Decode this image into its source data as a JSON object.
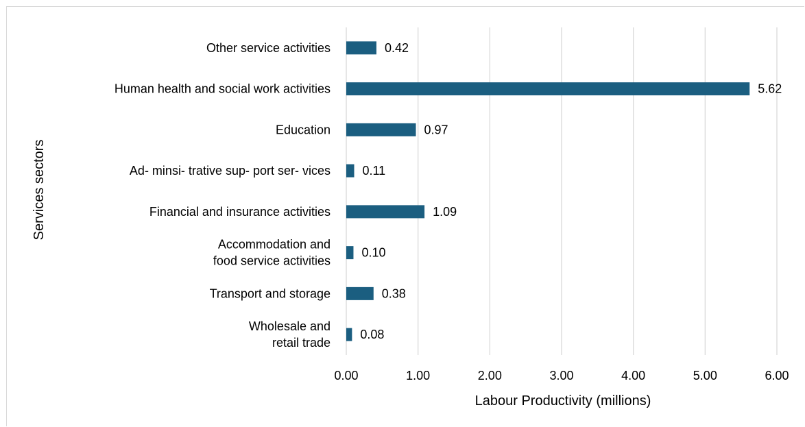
{
  "chart_data": {
    "type": "bar",
    "orientation": "horizontal",
    "categories": [
      [
        "Wholesale and",
        "retail trade"
      ],
      [
        "Transport and storage"
      ],
      [
        "Accommodation and",
        "food service activities"
      ],
      [
        "Financial and insurance activities"
      ],
      [
        "Ad- minsi- trative sup- port ser- vices"
      ],
      [
        "Education"
      ],
      [
        "Human health and social work activities"
      ],
      [
        "Other service activities"
      ]
    ],
    "values": [
      0.08,
      0.38,
      0.1,
      1.09,
      0.11,
      0.97,
      5.62,
      0.42
    ],
    "data_labels": [
      "0.08",
      "0.38",
      "0.10",
      "1.09",
      "0.11",
      "0.97",
      "5.62",
      "0.42"
    ],
    "xlim": [
      0,
      6
    ],
    "xticks": [
      "0.00",
      "1.00",
      "2.00",
      "3.00",
      "4.00",
      "5.00",
      "6.00"
    ],
    "xlabel": "Labour Productivity (millions)",
    "ylabel": "Services sectors",
    "grid": "vertical",
    "bar_color": "#1b5e80",
    "grid_color": "#d9d9d9"
  }
}
